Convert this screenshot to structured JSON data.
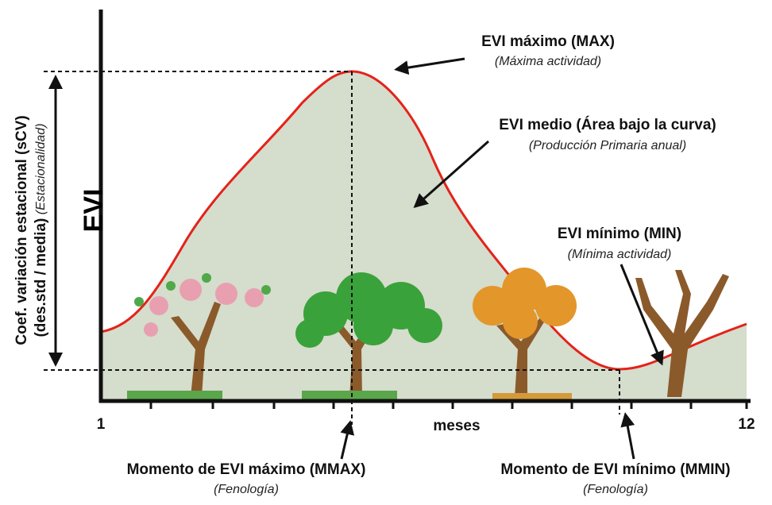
{
  "axes": {
    "y_label": "EVI",
    "x_label": "meses",
    "x_start": "1",
    "x_end": "12",
    "scv_line1": "Coef. variación estacional (sCV)",
    "scv_line2": "(des.std / media)",
    "scv_line2_note": "(Estacionalidad)"
  },
  "annotations": [
    {
      "title": "EVI máximo (MAX)",
      "subtitle": "(Máxima actividad)"
    },
    {
      "title": "EVI medio (Área bajo la curva)",
      "subtitle": "(Producción Primaria anual)"
    },
    {
      "title": "EVI mínimo (MIN)",
      "subtitle": "(Mínima actividad)"
    },
    {
      "title": "Momento de EVI máximo (MMAX)",
      "subtitle": "(Fenología)"
    },
    {
      "title": "Momento de EVI mínimo (MMIN)",
      "subtitle": "(Fenología)"
    }
  ]
}
